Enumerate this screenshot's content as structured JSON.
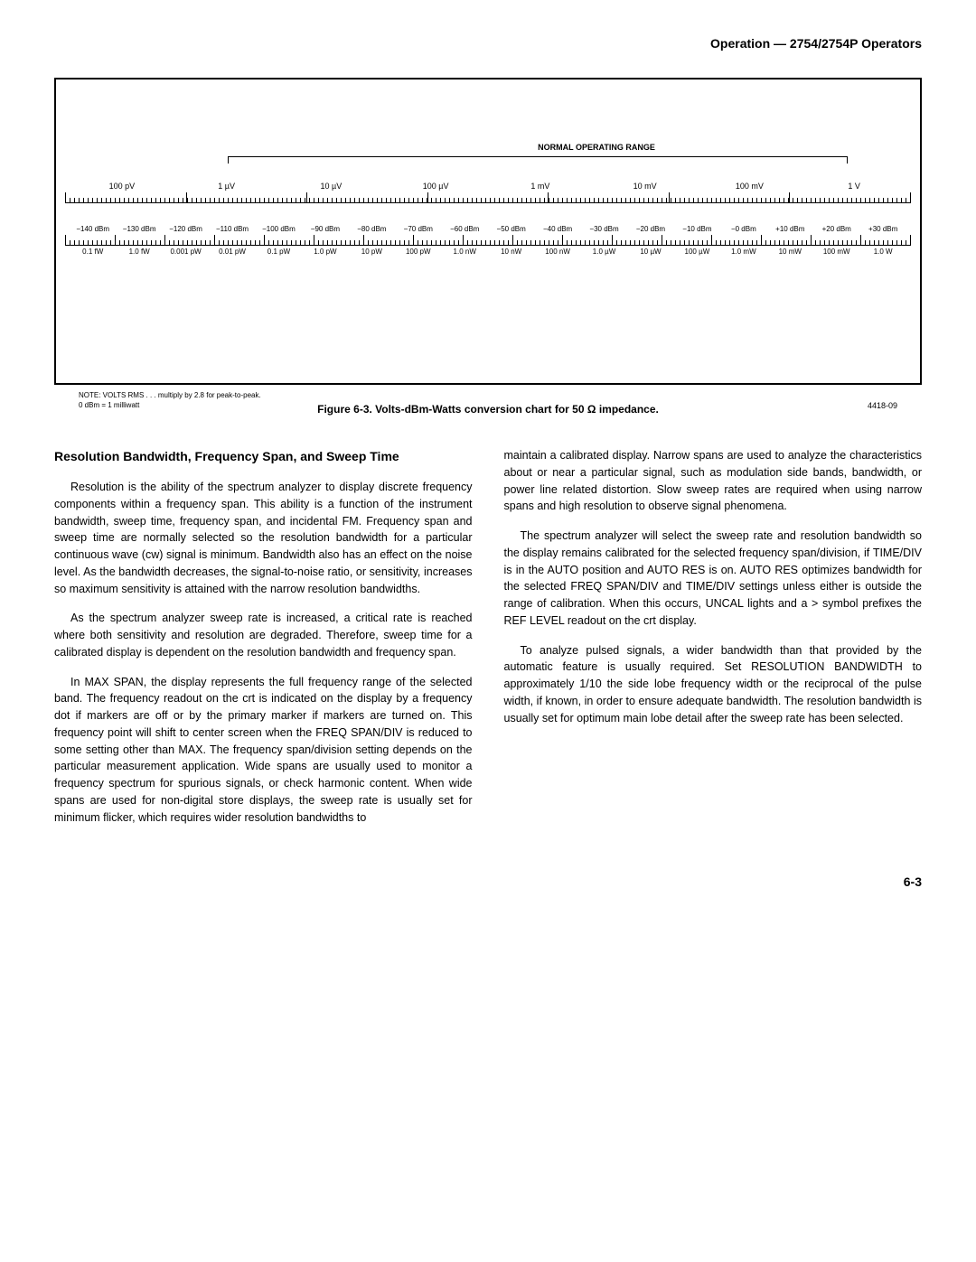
{
  "header": "Operation — 2754/2754P Operators",
  "chart": {
    "op_range_label": "NORMAL OPERATING RANGE",
    "volts_scale": [
      "100 pV",
      "1 µV",
      "10 µV",
      "100 µV",
      "1 mV",
      "10 mV",
      "100 mV",
      "1 V"
    ],
    "dbm_scale": [
      "−140 dBm",
      "−130 dBm",
      "−120 dBm",
      "−110 dBm",
      "−100 dBm",
      "−90 dBm",
      "−80 dBm",
      "−70 dBm",
      "−60 dBm",
      "−50 dBm",
      "−40 dBm",
      "−30 dBm",
      "−20 dBm",
      "−10 dBm",
      "−0 dBm",
      "+10 dBm",
      "+20 dBm",
      "+30 dBm"
    ],
    "watts_scale": [
      "0.1 fW",
      "1.0 fW",
      "0.001 pW",
      "0.01 pW",
      "0.1 pW",
      "1.0 pW",
      "10 pW",
      "100 pW",
      "1.0 nW",
      "10 nW",
      "100 nW",
      "1.0 µW",
      "10 µW",
      "100 µW",
      "1.0 mW",
      "10 mW",
      "100 mW",
      "1.0 W"
    ],
    "note_line1": "NOTE: VOLTS RMS . . . multiply by 2.8 for peak-to-peak.",
    "note_line2": "0 dBm = 1 milliwatt",
    "chart_id": "4418-09",
    "background_color": "#ffffff",
    "border_color": "#000000",
    "text_color": "#000000"
  },
  "figure_caption": "Figure 6-3. Volts-dBm-Watts conversion chart for 50 Ω impedance.",
  "section_heading": "Resolution Bandwidth, Frequency Span, and Sweep Time",
  "paragraphs": {
    "p1": "Resolution is the ability of the spectrum analyzer to display discrete frequency components within a frequency span. This ability is a function of the instrument bandwidth, sweep time, frequency span, and incidental FM. Frequency span and sweep time are normally selected so the resolution bandwidth for a particular continuous wave (cw) signal is minimum. Bandwidth also has an effect on the noise level. As the bandwidth decreases, the signal-to-noise ratio, or sensitivity, increases so maximum sensitivity is attained with the narrow resolution bandwidths.",
    "p2": "As the spectrum analyzer sweep rate is increased, a critical rate is reached where both sensitivity and resolution are degraded. Therefore, sweep time for a calibrated display is dependent on the resolution bandwidth and frequency span.",
    "p3": "In MAX SPAN, the display represents the full frequency range of the selected band. The frequency readout on the crt is indicated on the display by a frequency dot if markers are off or by the primary marker if markers are turned on. This frequency point will shift to center screen when the FREQ SPAN/DIV is reduced to some setting other than MAX. The frequency span/division setting depends on the particular measurement application. Wide spans are usually used to monitor a frequency spectrum for spurious signals, or check harmonic content. When wide spans are used for non-digital store displays, the sweep rate is usually set for minimum flicker, which requires wider resolution bandwidths to",
    "p4": "maintain a calibrated display. Narrow spans are used to analyze the characteristics about or near a particular signal, such as modulation side bands, bandwidth, or power line related distortion. Slow sweep rates are required when using narrow spans and high resolution to observe signal phenomena.",
    "p5": "The spectrum analyzer will select the sweep rate and resolution bandwidth so the display remains calibrated for the selected frequency span/division, if TIME/DIV is in the AUTO position and AUTO RES is on. AUTO RES optimizes bandwidth for the selected FREQ SPAN/DIV and TIME/DIV settings unless either is outside the range of calibration. When this occurs, UNCAL lights and a > symbol prefixes the REF LEVEL readout on the crt display.",
    "p6": "To analyze pulsed signals, a wider bandwidth than that provided by the automatic feature is usually required. Set RESOLUTION BANDWIDTH to approximately 1/10 the side lobe frequency width or the reciprocal of the pulse width, if known, in order to ensure adequate bandwidth. The resolution bandwidth is usually set for optimum main lobe detail after the sweep rate has been selected."
  },
  "page_number": "6-3"
}
